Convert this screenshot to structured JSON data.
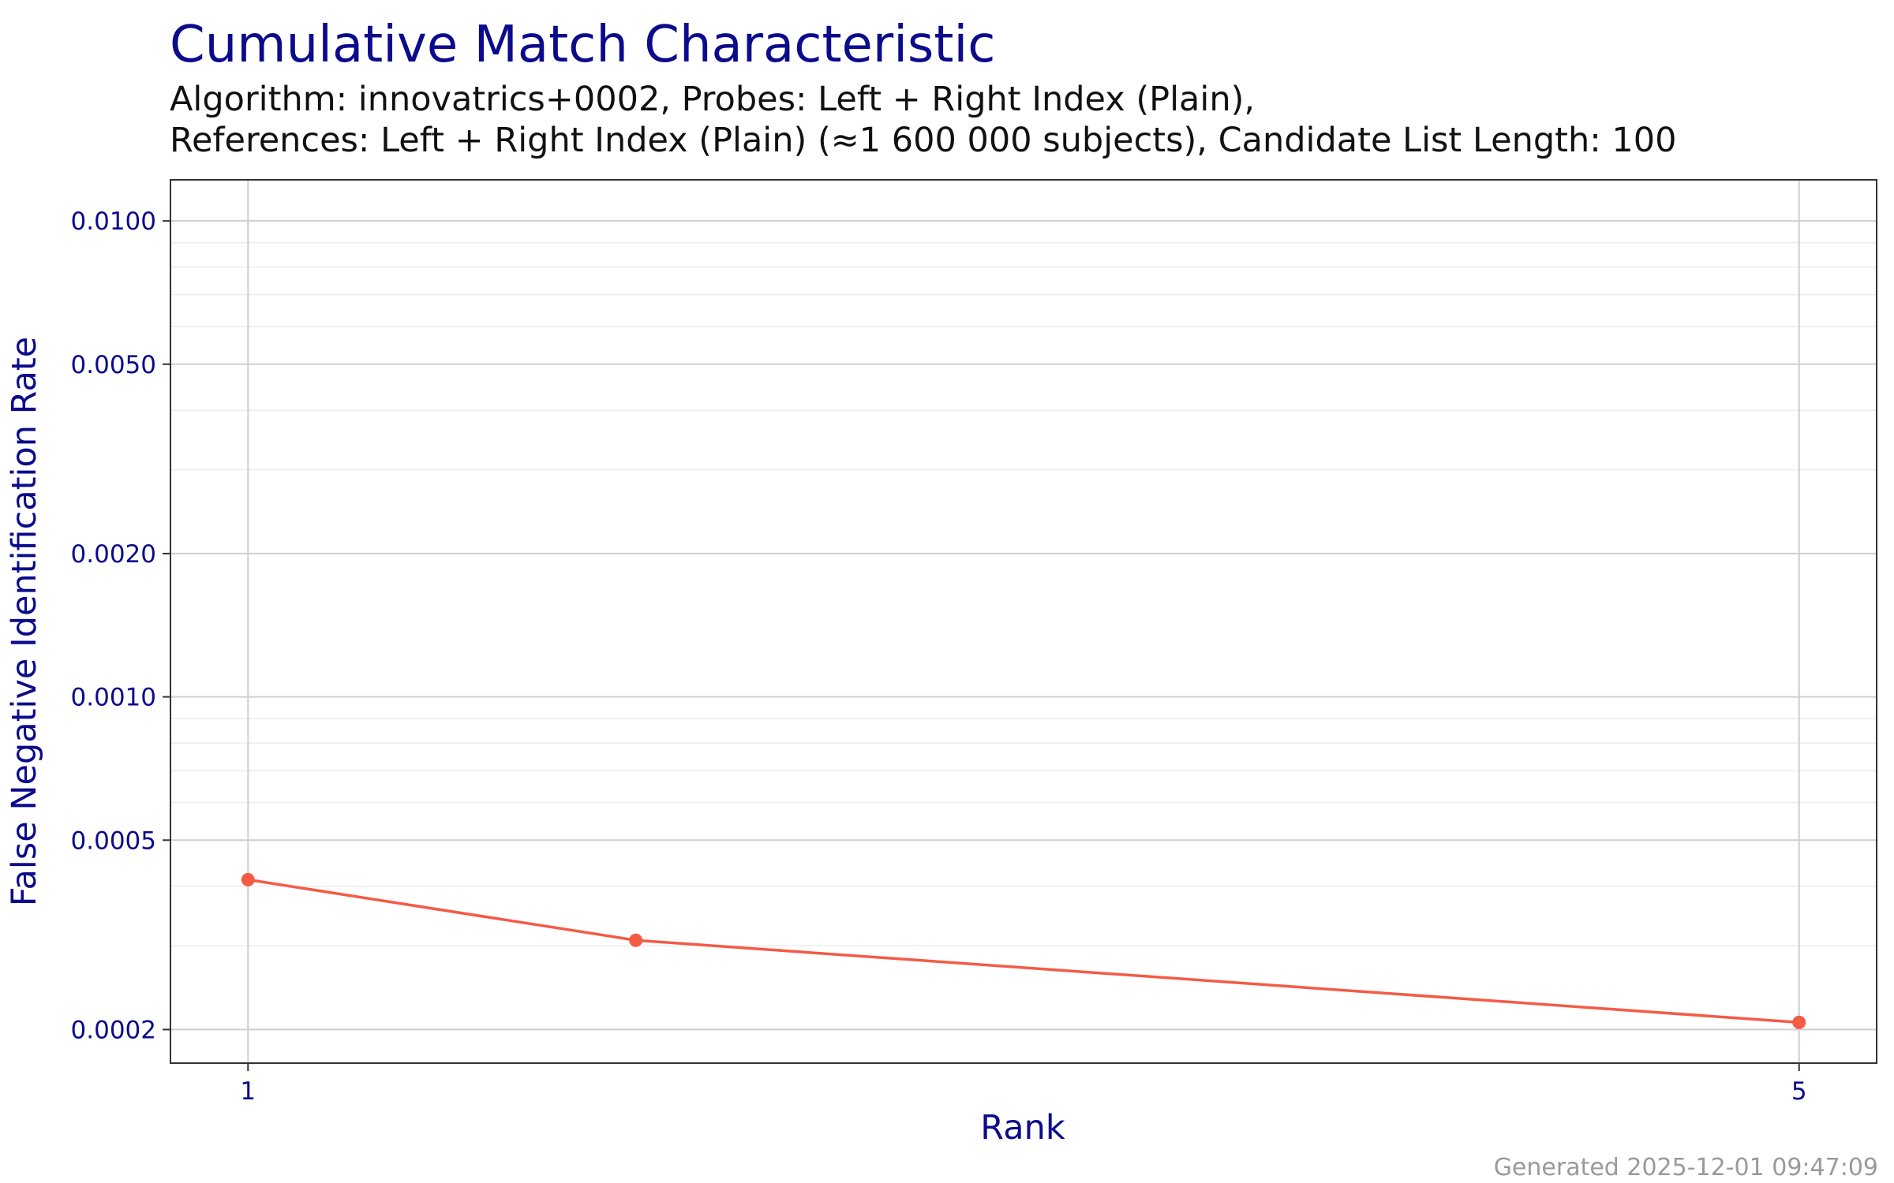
{
  "chart_data": {
    "type": "line",
    "title": "Cumulative Match Characteristic",
    "subtitle_lines": [
      "Algorithm: innovatrics+0002, Probes: Left + Right Index (Plain),",
      "References: Left + Right Index (Plain) (≈1 600 000 subjects), Candidate List Length: 100"
    ],
    "xlabel": "Rank",
    "ylabel": "False Negative Identification Rate",
    "x_scale": "linear",
    "y_scale": "log10",
    "xlim": [
      0.8,
      5.2
    ],
    "ylim": [
      0.00017,
      0.0122
    ],
    "x_ticks": [
      1,
      5
    ],
    "x_tick_labels": [
      "1",
      "5"
    ],
    "y_ticks": [
      0.0002,
      0.0005,
      0.001,
      0.002,
      0.005,
      0.01
    ],
    "y_tick_labels": [
      "0.0002",
      "0.0005",
      "0.0010",
      "0.0020",
      "0.0050",
      "0.0100"
    ],
    "grid": true,
    "series": [
      {
        "name": "innovatrics+0002",
        "color": "#f45b45",
        "x": [
          1,
          2,
          5
        ],
        "y": [
          0.000413,
          0.000308,
          0.000207
        ]
      }
    ],
    "footer": "Generated 2025-12-01 09:47:09"
  },
  "colors": {
    "title": "#0b0b8c",
    "grid_major": "#cfcfcf",
    "grid_minor": "#ececec",
    "panel_border": "#333333"
  }
}
